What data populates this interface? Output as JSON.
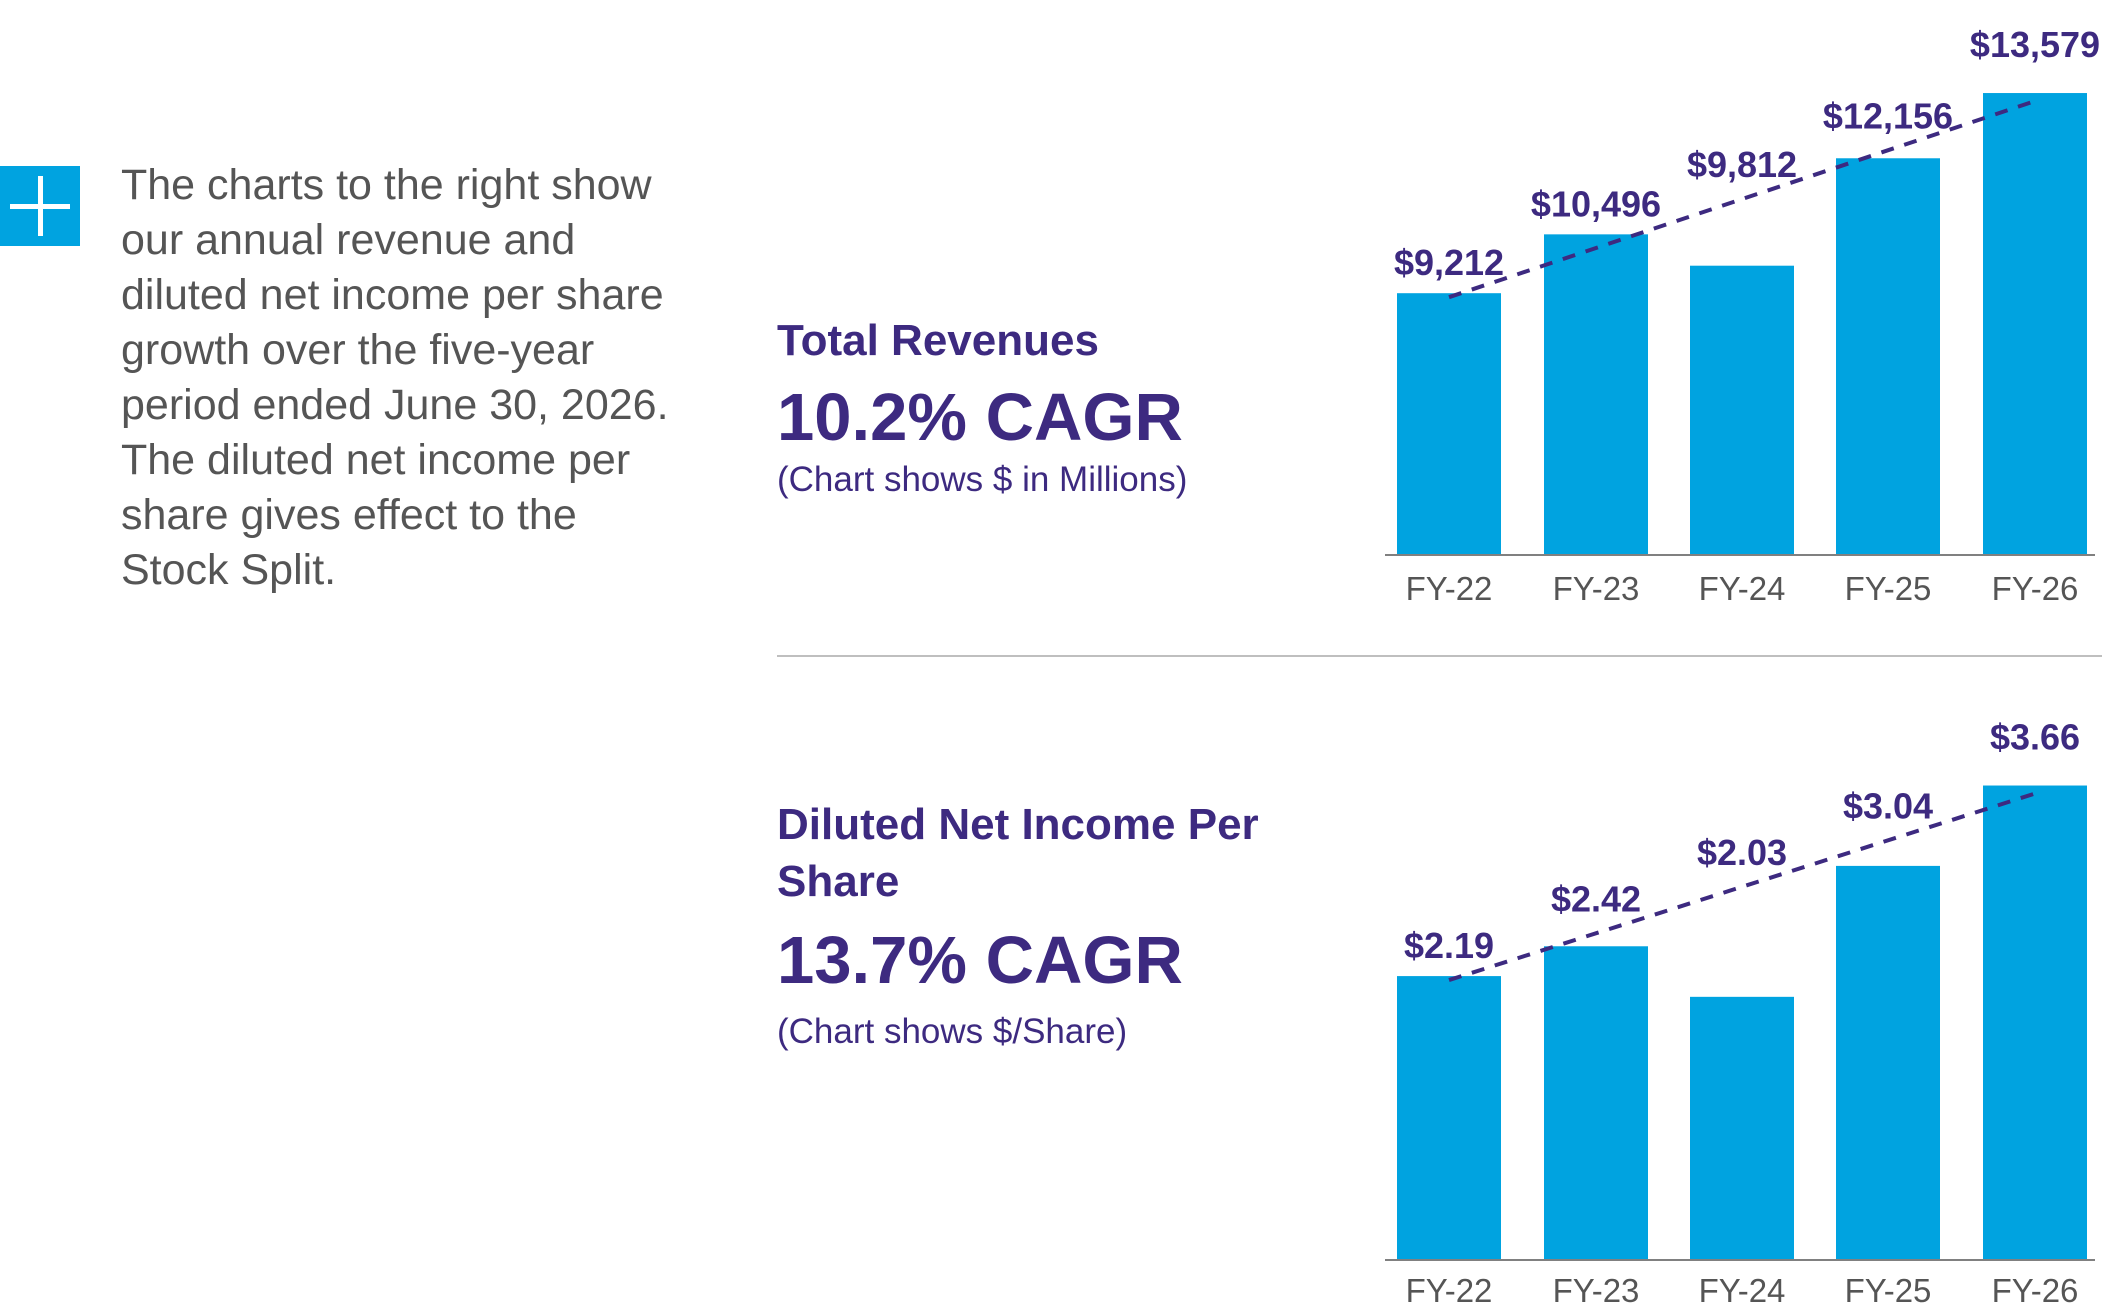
{
  "intro": {
    "text": "The charts to the right show our annual revenue and diluted net income per share growth over the five-year period ended June 30, 2026. The diluted net income per share gives effect to the Stock Split."
  },
  "colors": {
    "bar": "#00a3e0",
    "text": "#3d2a80",
    "axis": "#555555",
    "accent": "#00a3e0"
  },
  "chart_data": [
    {
      "type": "bar",
      "title": "Total Revenues",
      "subtitle": "10.2% CAGR",
      "note": "(Chart shows $ in Millions)",
      "categories": [
        "FY-22",
        "FY-23",
        "FY-24",
        "FY-25",
        "FY-26"
      ],
      "values": [
        9212,
        10496,
        9812,
        12156,
        13579
      ],
      "data_labels": [
        "$9,212",
        "$10,496",
        "$9,812",
        "$12,156",
        "$13,579"
      ],
      "ylim": [
        3500,
        14300
      ],
      "trendline": {
        "from": "FY-22",
        "to": "FY-26",
        "style": "dashed"
      }
    },
    {
      "type": "bar",
      "title": "Diluted Net Income Per Share",
      "subtitle": "13.7% CAGR",
      "note": "(Chart shows $/Share)",
      "categories": [
        "FY-22",
        "FY-23",
        "FY-24",
        "FY-25",
        "FY-26"
      ],
      "values": [
        2.19,
        2.42,
        2.03,
        3.04,
        3.66
      ],
      "data_labels": [
        "$2.19",
        "$2.42",
        "$2.03",
        "$3.04",
        "$3.66"
      ],
      "ylim": [
        0,
        4.15
      ],
      "trendline": {
        "from": "FY-22",
        "to": "FY-26",
        "style": "dashed"
      }
    }
  ]
}
